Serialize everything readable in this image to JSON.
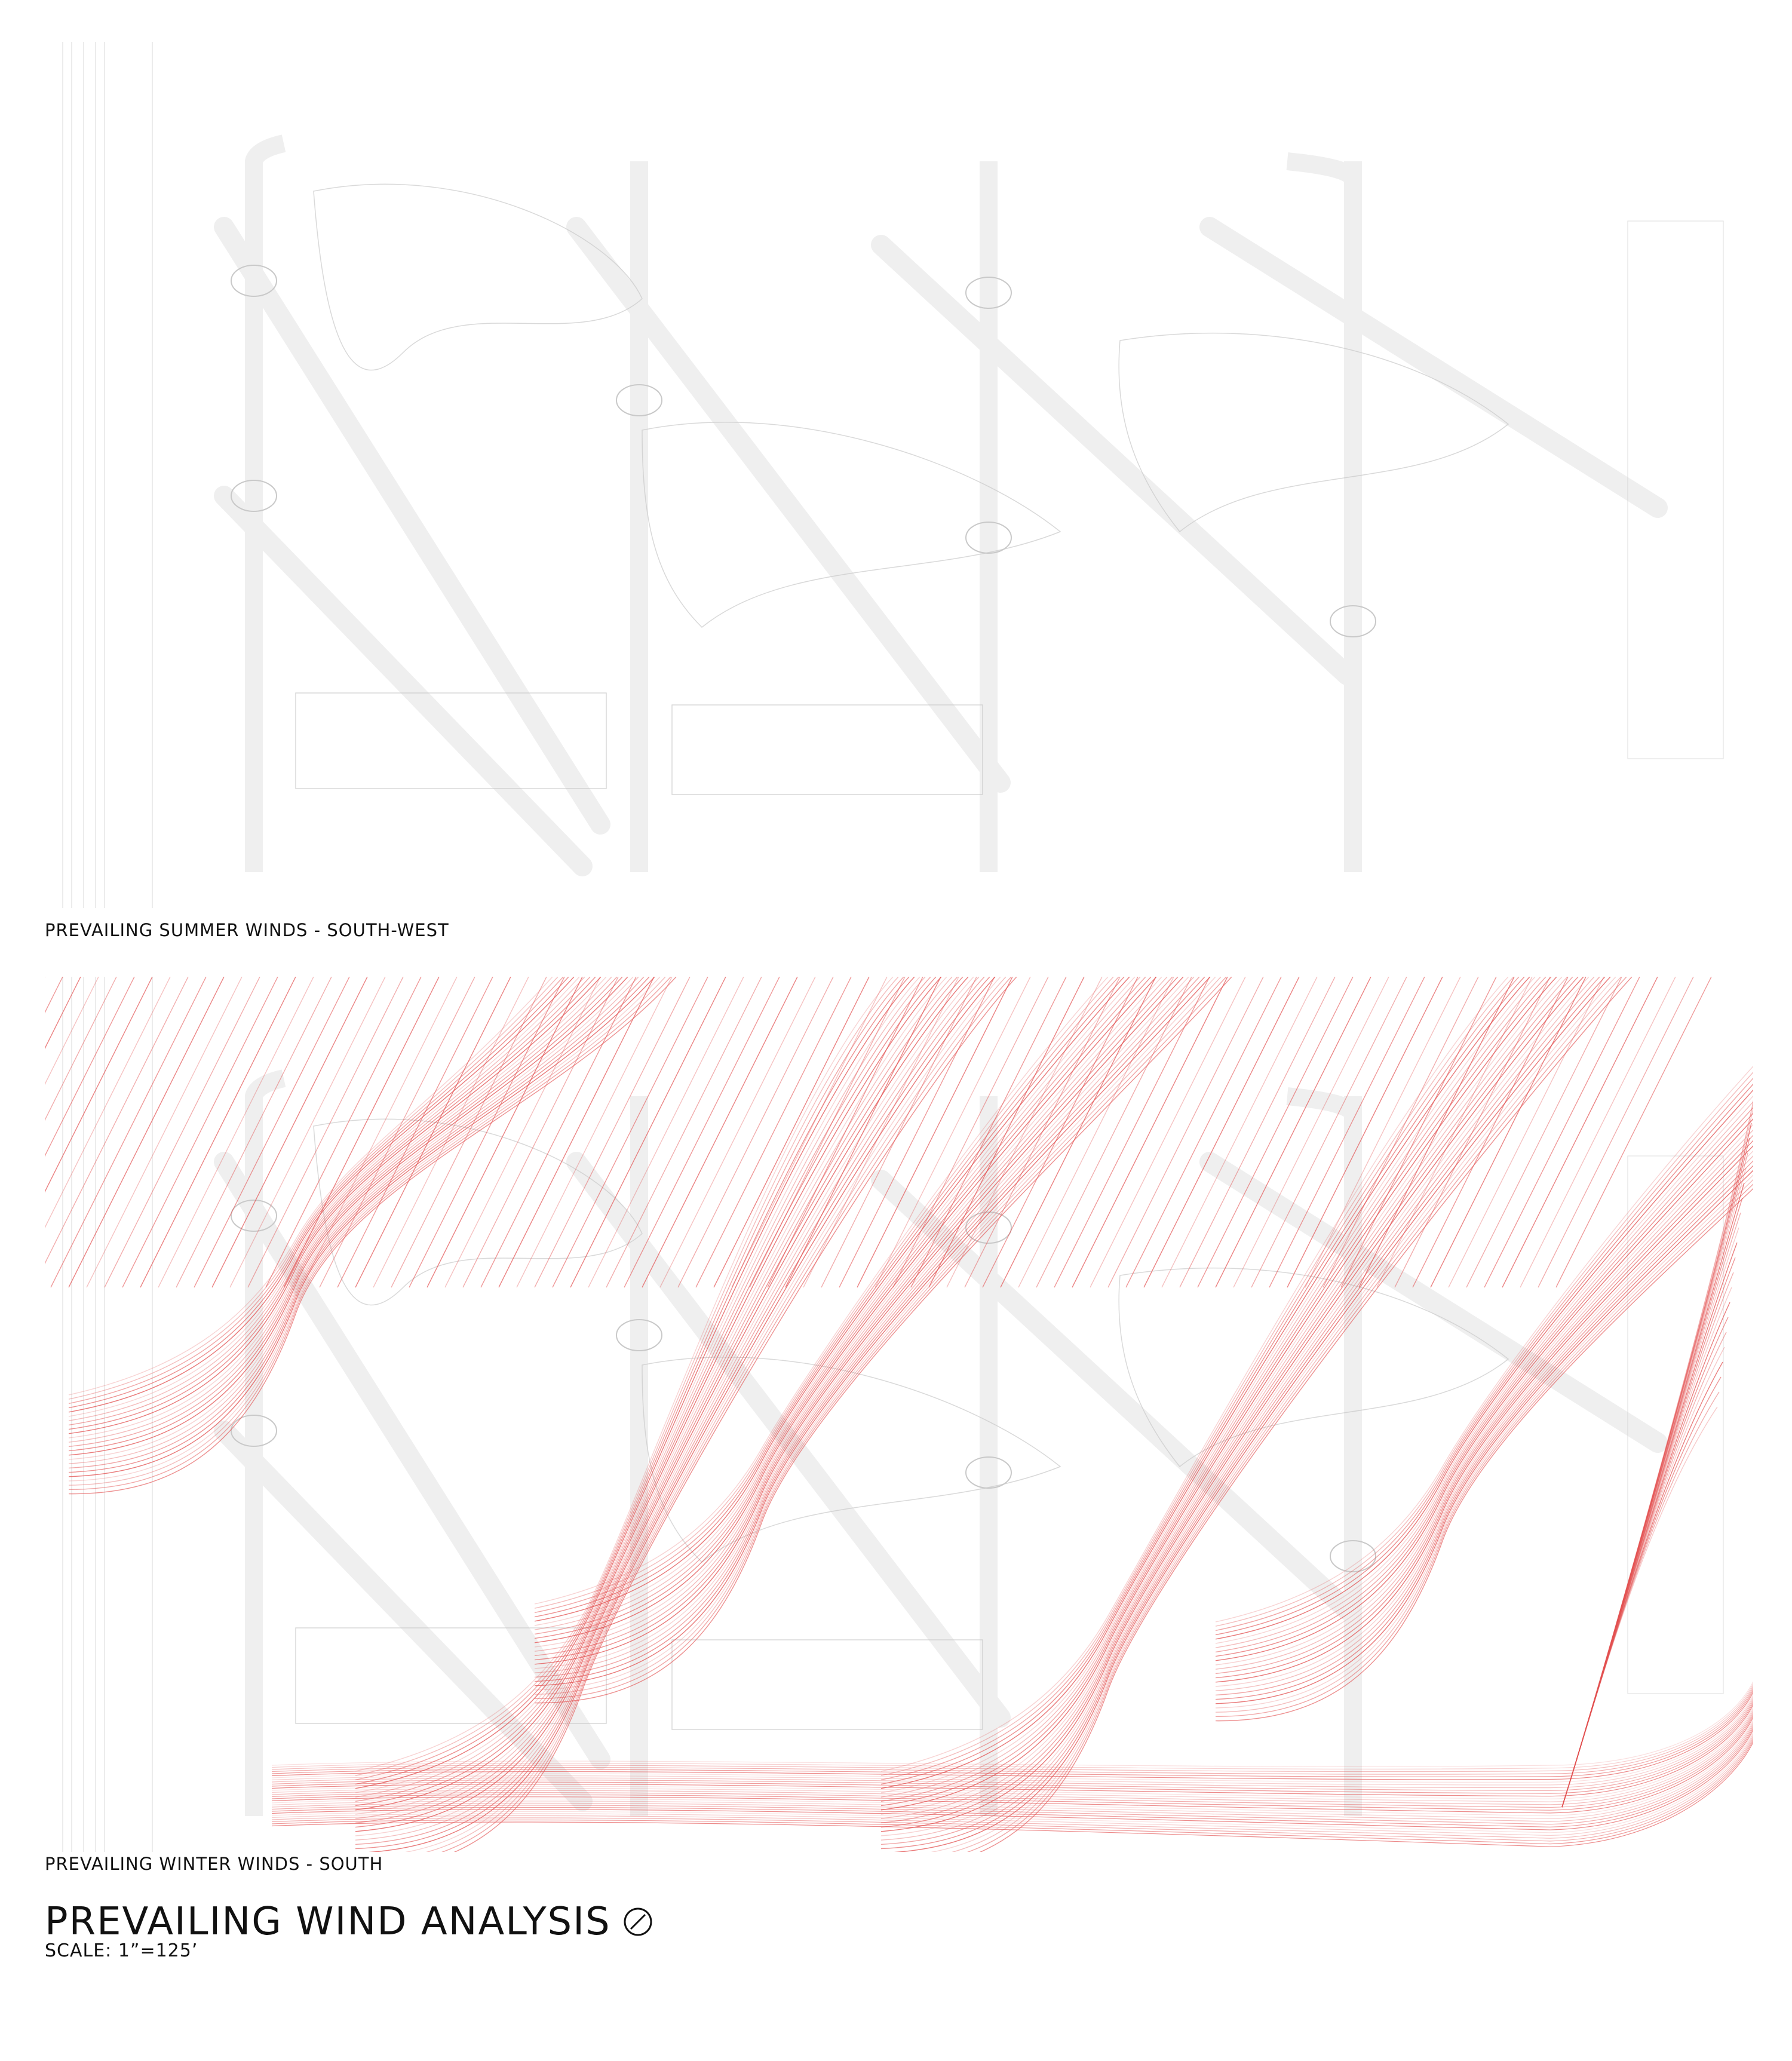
{
  "panels": {
    "summer": {
      "caption": "PREVAILING SUMMER WINDS - SOUTH-WEST"
    },
    "winter": {
      "caption": "PREVAILING WINTER WINDS - SOUTH"
    }
  },
  "title": "PREVAILING WIND ANALYSIS",
  "scale": "SCALE: 1”=125’",
  "north_arrow_icon": "north-arrow-icon",
  "colors": {
    "wind": "#e35151",
    "plan_lines": "#c9c9c9",
    "roads": "#efefef"
  }
}
